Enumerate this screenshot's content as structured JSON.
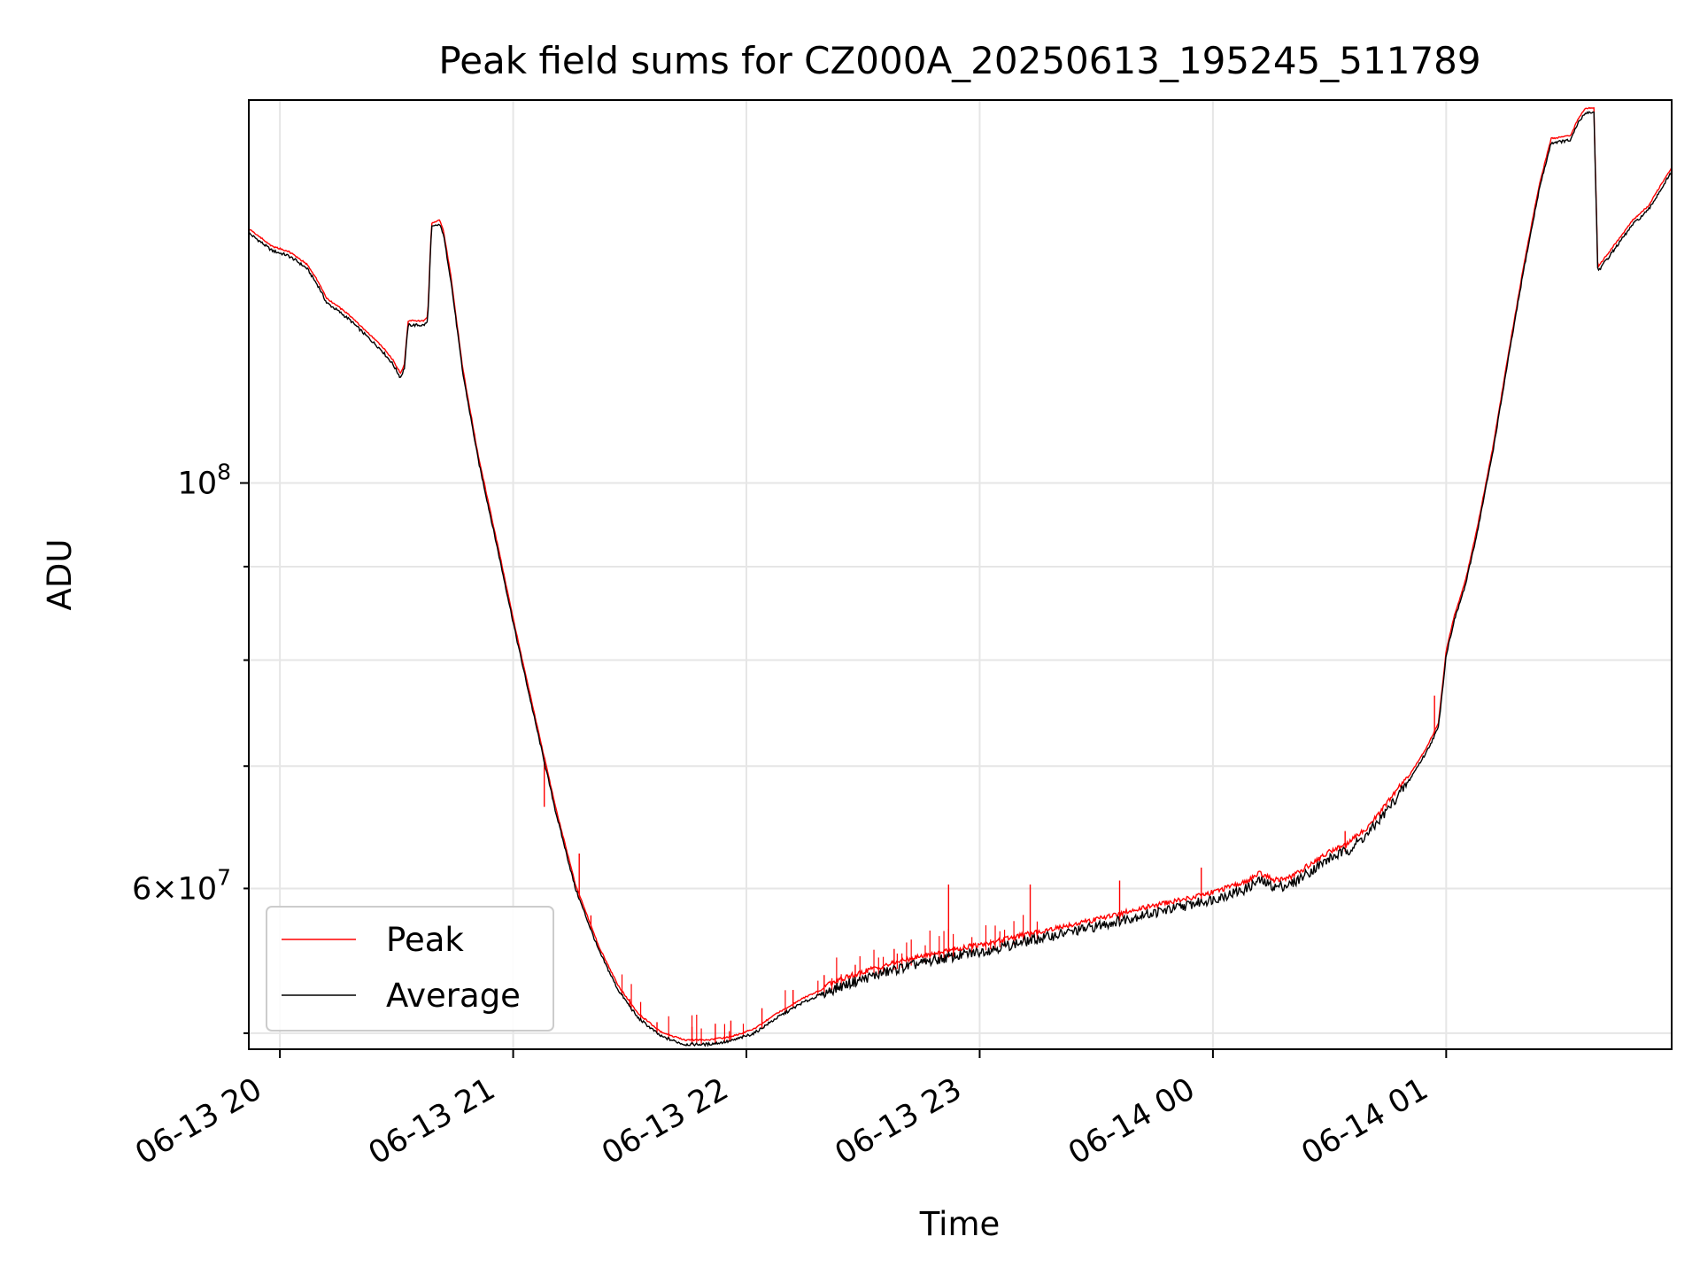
{
  "chart_data": {
    "type": "line",
    "title": "Peak field sums for CZ000A_20250613_195245_511789",
    "xlabel": "Time",
    "ylabel": "ADU",
    "yscale": "log",
    "ylim": [
      49000000,
      162000000
    ],
    "xlim": [
      "2025-06-13 19:52",
      "2025-06-14 01:58"
    ],
    "grid": true,
    "legend_position": "lower-left",
    "x_ticks": [
      {
        "t": "2025-06-13 20:00",
        "label": "06-13 20"
      },
      {
        "t": "2025-06-13 21:00",
        "label": "06-13 21"
      },
      {
        "t": "2025-06-13 22:00",
        "label": "06-13 22"
      },
      {
        "t": "2025-06-13 23:00",
        "label": "06-13 23"
      },
      {
        "t": "2025-06-14 00:00",
        "label": "06-14 00"
      },
      {
        "t": "2025-06-14 01:00",
        "label": "06-14 01"
      }
    ],
    "y_ticks_major": [
      {
        "value": 100000000,
        "base": "10",
        "exp": "8"
      }
    ],
    "y_ticks_minor": [
      {
        "value": 60000000,
        "mant": "6",
        "base": "10",
        "exp": "7"
      },
      {
        "value": 70000000
      },
      {
        "value": 80000000
      },
      {
        "value": 90000000
      },
      {
        "value": 50000000
      }
    ],
    "series": [
      {
        "name": "Peak",
        "color": "#ff0000"
      },
      {
        "name": "Average",
        "color": "#000000"
      }
    ],
    "average_points": [
      [
        "2025-06-13 19:52",
        137000000
      ],
      [
        "2025-06-13 19:55",
        135500000
      ],
      [
        "2025-06-13 19:58",
        134000000
      ],
      [
        "2025-06-13 20:02",
        133200000
      ],
      [
        "2025-06-13 20:04",
        132400000
      ],
      [
        "2025-06-13 20:07",
        131000000
      ],
      [
        "2025-06-13 20:10",
        128000000
      ],
      [
        "2025-06-13 20:12",
        125500000
      ],
      [
        "2025-06-13 20:15",
        124200000
      ],
      [
        "2025-06-13 20:18",
        122800000
      ],
      [
        "2025-06-13 20:22",
        120500000
      ],
      [
        "2025-06-13 20:26",
        118300000
      ],
      [
        "2025-06-13 20:29",
        116200000
      ],
      [
        "2025-06-13 20:31",
        114200000
      ],
      [
        "2025-06-13 20:32",
        115500000
      ],
      [
        "2025-06-13 20:33",
        122000000
      ],
      [
        "2025-06-13 20:37",
        122000000
      ],
      [
        "2025-06-13 20:38",
        122500000
      ],
      [
        "2025-06-13 20:39",
        138000000
      ],
      [
        "2025-06-13 20:41",
        138500000
      ],
      [
        "2025-06-13 20:42",
        137000000
      ],
      [
        "2025-06-13 20:44",
        129000000
      ],
      [
        "2025-06-13 20:47",
        115000000
      ],
      [
        "2025-06-13 20:51",
        103000000
      ],
      [
        "2025-06-13 20:56",
        92000000
      ],
      [
        "2025-06-13 21:01",
        82000000
      ],
      [
        "2025-06-13 21:06",
        73500000
      ],
      [
        "2025-06-13 21:11",
        66000000
      ],
      [
        "2025-06-13 21:16",
        60000000
      ],
      [
        "2025-06-13 21:22",
        55500000
      ],
      [
        "2025-06-13 21:27",
        52800000
      ],
      [
        "2025-06-13 21:32",
        51000000
      ],
      [
        "2025-06-13 21:38",
        49800000
      ],
      [
        "2025-06-13 21:44",
        49300000
      ],
      [
        "2025-06-13 21:50",
        49300000
      ],
      [
        "2025-06-13 21:56",
        49500000
      ],
      [
        "2025-06-13 22:02",
        50000000
      ],
      [
        "2025-06-13 22:08",
        51000000
      ],
      [
        "2025-06-13 22:14",
        51900000
      ],
      [
        "2025-06-13 22:20",
        52600000
      ],
      [
        "2025-06-13 22:26",
        53200000
      ],
      [
        "2025-06-13 22:32",
        53700000
      ],
      [
        "2025-06-13 22:40",
        54300000
      ],
      [
        "2025-06-13 22:50",
        54900000
      ],
      [
        "2025-06-13 23:00",
        55400000
      ],
      [
        "2025-06-13 23:10",
        56000000
      ],
      [
        "2025-06-13 23:20",
        56600000
      ],
      [
        "2025-06-13 23:30",
        57200000
      ],
      [
        "2025-06-13 23:40",
        57900000
      ],
      [
        "2025-06-13 23:50",
        58500000
      ],
      [
        "2025-06-14 00:00",
        59200000
      ],
      [
        "2025-06-14 00:08",
        59900000
      ],
      [
        "2025-06-14 00:12",
        60600000
      ],
      [
        "2025-06-14 00:16",
        60100000
      ],
      [
        "2025-06-14 00:20",
        60300000
      ],
      [
        "2025-06-14 00:25",
        61300000
      ],
      [
        "2025-06-14 00:30",
        62300000
      ],
      [
        "2025-06-14 00:35",
        63000000
      ],
      [
        "2025-06-14 00:40",
        64300000
      ],
      [
        "2025-06-14 00:45",
        66300000
      ],
      [
        "2025-06-14 00:50",
        68500000
      ],
      [
        "2025-06-14 00:55",
        71300000
      ],
      [
        "2025-06-14 00:58",
        73500000
      ],
      [
        "2025-06-14 01:00",
        80500000
      ],
      [
        "2025-06-14 01:02",
        84000000
      ],
      [
        "2025-06-14 01:05",
        88000000
      ],
      [
        "2025-06-14 01:08",
        94000000
      ],
      [
        "2025-06-14 01:12",
        104000000
      ],
      [
        "2025-06-14 01:16",
        117000000
      ],
      [
        "2025-06-14 01:20",
        131000000
      ],
      [
        "2025-06-14 01:24",
        145000000
      ],
      [
        "2025-06-14 01:27",
        153500000
      ],
      [
        "2025-06-14 01:32",
        154000000
      ],
      [
        "2025-06-14 01:34",
        157500000
      ],
      [
        "2025-06-14 01:36",
        159500000
      ],
      [
        "2025-06-14 01:38",
        159500000
      ],
      [
        "2025-06-14 01:39",
        130500000
      ],
      [
        "2025-06-14 01:43",
        134000000
      ],
      [
        "2025-06-14 01:48",
        138500000
      ],
      [
        "2025-06-14 01:52",
        141000000
      ],
      [
        "2025-06-14 01:55",
        144500000
      ],
      [
        "2025-06-14 01:58",
        148000000
      ]
    ],
    "peak_spikes": [
      [
        "2025-06-13 21:08",
        66500000
      ],
      [
        "2025-06-13 21:17",
        62700000
      ],
      [
        "2025-06-13 21:20",
        58000000
      ],
      [
        "2025-06-13 21:30",
        52200000
      ],
      [
        "2025-06-13 21:37",
        50700000
      ],
      [
        "2025-06-13 21:46",
        50400000
      ],
      [
        "2025-06-13 21:52",
        50600000
      ],
      [
        "2025-06-13 21:56",
        50800000
      ],
      [
        "2025-06-13 22:04",
        51600000
      ],
      [
        "2025-06-13 22:12",
        52800000
      ],
      [
        "2025-06-13 22:20",
        53800000
      ],
      [
        "2025-06-13 22:28",
        54500000
      ],
      [
        "2025-06-13 22:38",
        55600000
      ],
      [
        "2025-06-13 22:52",
        60300000
      ],
      [
        "2025-06-13 23:13",
        60300000
      ],
      [
        "2025-06-13 23:36",
        60600000
      ],
      [
        "2025-06-13 23:57",
        61600000
      ],
      [
        "2025-06-14 00:34",
        64500000
      ],
      [
        "2025-06-14 00:57",
        76500000
      ]
    ]
  }
}
